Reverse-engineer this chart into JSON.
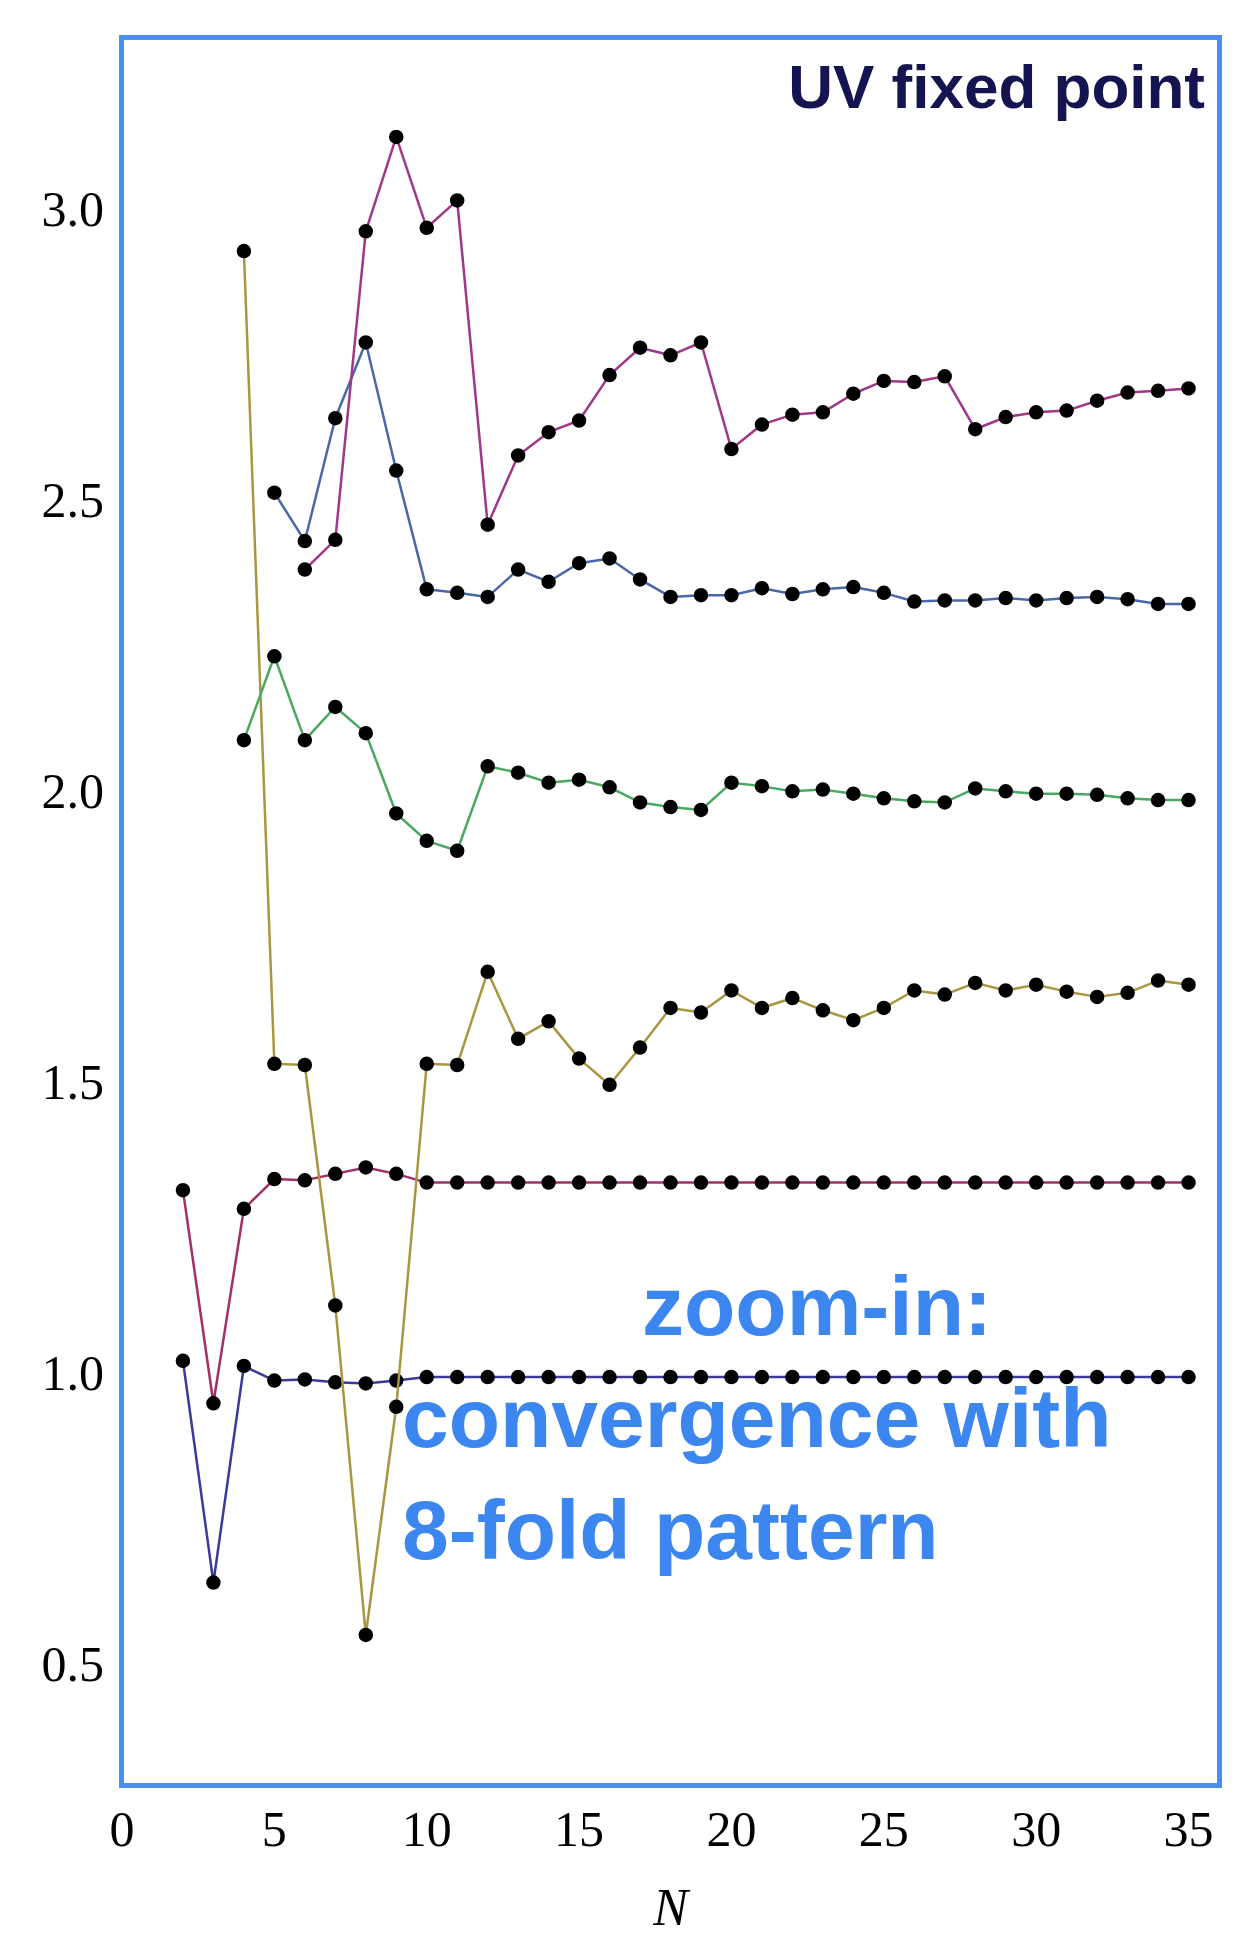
{
  "chart_data": {
    "type": "line",
    "xlabel": "N",
    "annotations": [
      "UV fixed point",
      "zoom-in: convergence with 8-fold pattern"
    ],
    "x": [
      2,
      3,
      4,
      5,
      6,
      7,
      8,
      9,
      10,
      11,
      12,
      13,
      14,
      15,
      16,
      17,
      18,
      19,
      20,
      21,
      22,
      23,
      24,
      25,
      26,
      27,
      28,
      29,
      30,
      31,
      32,
      33,
      34,
      35
    ],
    "xlim": [
      0,
      36
    ],
    "xticks": [
      0,
      5,
      10,
      15,
      20,
      25,
      30,
      35
    ],
    "ylim": [
      0.3,
      3.3
    ],
    "yticks": [
      {
        "value": 0.5,
        "label": "0.5"
      },
      {
        "value": 1,
        "label": "1.0"
      },
      {
        "value": 1.5,
        "label": "1.5"
      },
      {
        "value": 2,
        "label": "2.0"
      },
      {
        "value": 2.5,
        "label": "2.5"
      },
      {
        "value": 3,
        "label": "3.0"
      }
    ],
    "grid": false,
    "legend": false,
    "marker": "circle",
    "line_style": "solid",
    "series": [
      {
        "color": "#a0388a",
        "values": [
          null,
          null,
          null,
          null,
          2.387,
          2.438,
          2.968,
          3.13,
          2.974,
          3.021,
          2.464,
          2.583,
          2.623,
          2.643,
          2.721,
          2.768,
          2.755,
          2.777,
          2.594,
          2.636,
          2.653,
          2.657,
          2.689,
          2.711,
          2.709,
          2.719,
          2.628,
          2.649,
          2.657,
          2.66,
          2.677,
          2.691,
          2.694,
          2.698
        ]
      },
      {
        "color": "#4a68a8",
        "values": [
          null,
          null,
          null,
          2.519,
          2.436,
          2.647,
          2.777,
          2.557,
          2.353,
          2.347,
          2.34,
          2.387,
          2.366,
          2.398,
          2.406,
          2.37,
          2.34,
          2.343,
          2.343,
          2.355,
          2.345,
          2.353,
          2.357,
          2.347,
          2.332,
          2.334,
          2.334,
          2.338,
          2.334,
          2.338,
          2.34,
          2.336,
          2.328,
          2.328
        ]
      },
      {
        "color": "#4aa860",
        "values": [
          null,
          null,
          2.094,
          2.238,
          2.094,
          2.151,
          2.106,
          1.968,
          1.921,
          1.904,
          2.049,
          2.038,
          2.021,
          2.026,
          2.013,
          1.987,
          1.979,
          1.974,
          2.021,
          2.015,
          2.006,
          2.009,
          2.002,
          1.994,
          1.989,
          1.987,
          2.011,
          2.006,
          2.002,
          2.002,
          2.0,
          1.994,
          1.991,
          1.991
        ]
      },
      {
        "color": "#a89640",
        "values": [
          null,
          null,
          2.934,
          1.538,
          1.536,
          1.123,
          0.557,
          0.949,
          1.538,
          1.536,
          1.696,
          1.581,
          1.611,
          1.547,
          1.502,
          1.566,
          1.634,
          1.626,
          1.664,
          1.634,
          1.651,
          1.63,
          1.613,
          1.634,
          1.664,
          1.657,
          1.677,
          1.664,
          1.674,
          1.662,
          1.653,
          1.66,
          1.681,
          1.674
        ]
      },
      {
        "color": "#a03068",
        "values": [
          1.321,
          0.955,
          1.289,
          1.34,
          1.338,
          1.349,
          1.36,
          1.349,
          1.334,
          1.334,
          1.334,
          1.334,
          1.334,
          1.334,
          1.334,
          1.334,
          1.334,
          1.334,
          1.334,
          1.334,
          1.334,
          1.334,
          1.334,
          1.334,
          1.334,
          1.334,
          1.334,
          1.334,
          1.334,
          1.334,
          1.334,
          1.334,
          1.334,
          1.334
        ]
      },
      {
        "color": "#3a3a9a",
        "values": [
          1.028,
          0.647,
          1.019,
          0.994,
          0.996,
          0.991,
          0.989,
          0.994,
          1.0,
          1.0,
          1.0,
          1.0,
          1.0,
          1.0,
          1.0,
          1.0,
          1.0,
          1.0,
          1.0,
          1.0,
          1.0,
          1.0,
          1.0,
          1.0,
          1.0,
          1.0,
          1.0,
          1.0,
          1.0,
          1.0,
          1.0,
          1.0,
          1.0,
          1.0
        ]
      }
    ]
  }
}
